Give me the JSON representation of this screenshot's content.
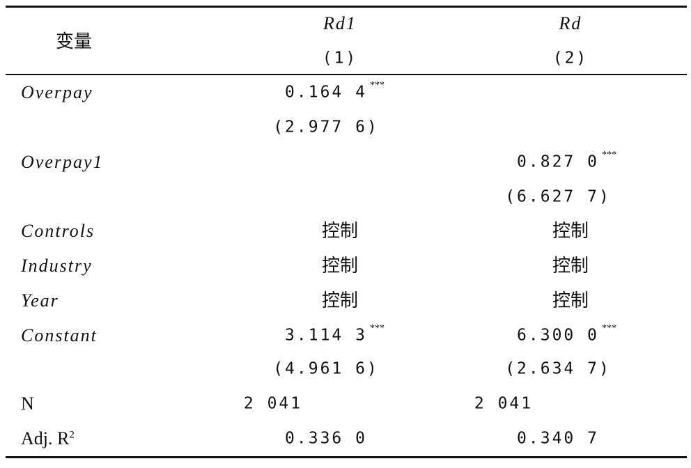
{
  "header": {
    "variable": "变量",
    "columns": [
      {
        "name": "Rd1",
        "number": "(1)"
      },
      {
        "name": "Rd",
        "number": "(2)"
      }
    ]
  },
  "table": {
    "rows": [
      {
        "label": "Overpay",
        "rd1": "0.164 4",
        "rd1_sig": "***"
      },
      {
        "rd1": "(2.977 6)"
      },
      {
        "label": "Overpay1",
        "rd": "0.827 0",
        "rd_sig": "***"
      },
      {
        "rd": "(6.627 7)"
      },
      {
        "label": "Controls",
        "rd1": "控制",
        "rd": "控制"
      },
      {
        "label": "Industry",
        "rd1": "控制",
        "rd": "控制"
      },
      {
        "label": "Year",
        "rd1": "控制",
        "rd": "控制"
      },
      {
        "label": "Constant",
        "rd1": "3.114 3",
        "rd1_sig": "***",
        "rd": "6.300 0",
        "rd_sig": "***"
      },
      {
        "rd1": "(4.961 6)",
        "rd": "(2.634 7)"
      },
      {
        "label": "N",
        "rd1": "2 041",
        "rd": "2 041"
      },
      {
        "label": "Adj. R",
        "label_sup": "2",
        "rd1": "0.336 0",
        "rd": "0.340 7"
      }
    ]
  }
}
